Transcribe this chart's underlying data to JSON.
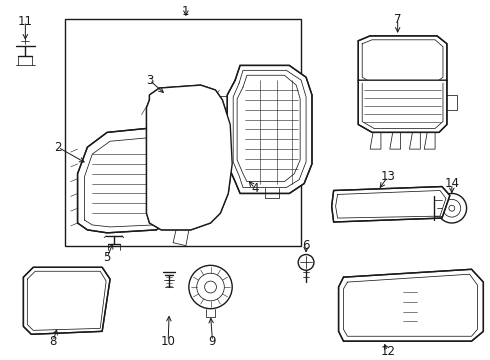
{
  "background_color": "#ffffff",
  "line_color": "#1a1a1a",
  "fig_width": 4.9,
  "fig_height": 3.6,
  "dpi": 100,
  "font_size": 8.5,
  "lw_main": 1.0,
  "lw_thin": 0.55,
  "lw_detail": 0.4
}
